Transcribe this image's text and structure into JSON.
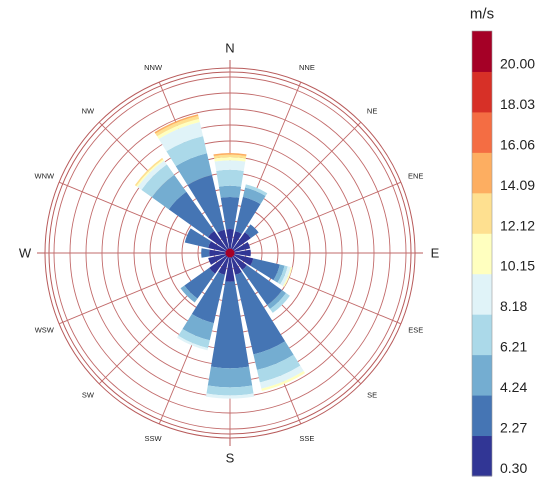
{
  "chart_data": {
    "type": "windrose",
    "unit": "m/s",
    "directions": [
      "N",
      "NNE",
      "NE",
      "ENE",
      "E",
      "ESE",
      "SE",
      "SSE",
      "S",
      "SSW",
      "SW",
      "WSW",
      "W",
      "WNW",
      "NW",
      "NNW"
    ],
    "bins": [
      {
        "range": "0.30–2.27",
        "color": "#313695"
      },
      {
        "range": "2.27–4.24",
        "color": "#4575b4"
      },
      {
        "range": "4.24–6.21",
        "color": "#74add1"
      },
      {
        "range": "6.21–8.18",
        "color": "#abd9e9"
      },
      {
        "range": "8.18–10.15",
        "color": "#e0f3f8"
      },
      {
        "range": "10.15–12.12",
        "color": "#ffffbf"
      },
      {
        "range": "12.12–14.09",
        "color": "#fee090"
      },
      {
        "range": "14.09–16.06",
        "color": "#fdae61"
      },
      {
        "range": "16.06–18.03",
        "color": "#f46d43"
      },
      {
        "range": "18.03–20.00",
        "color": "#d73027"
      },
      {
        "range": "> 20.00",
        "color": "#a50026"
      }
    ],
    "colorbar_ticks": [
      "0.30",
      "2.27",
      "4.24",
      "6.21",
      "8.18",
      "10.15",
      "12.12",
      "14.09",
      "16.06",
      "18.03",
      "20.00"
    ],
    "rings": 11,
    "series": [
      {
        "direction": "N",
        "cumulative": [
          1.5,
          3.5,
          4.2,
          5.2,
          5.8,
          6.0,
          6.15,
          6.25
        ]
      },
      {
        "direction": "NNE",
        "cumulative": [
          1.4,
          3.6,
          4.2,
          4.4
        ]
      },
      {
        "direction": "NE",
        "cumulative": [
          1.6,
          2.2
        ]
      },
      {
        "direction": "ENE",
        "cumulative": [
          1.3
        ]
      },
      {
        "direction": "E",
        "cumulative": [
          1.3
        ]
      },
      {
        "direction": "ESE",
        "cumulative": [
          1.5,
          3.2,
          3.5,
          3.7,
          3.9,
          4.0
        ]
      },
      {
        "direction": "SE",
        "cumulative": [
          1.3,
          4.0,
          4.3,
          4.6
        ]
      },
      {
        "direction": "SSE",
        "cumulative": [
          1.4,
          6.5,
          7.5,
          8.3,
          8.7,
          8.85
        ]
      },
      {
        "direction": "S",
        "cumulative": [
          1.8,
          7.2,
          8.4,
          8.9,
          9.1
        ]
      },
      {
        "direction": "SSW",
        "cumulative": [
          1.4,
          4.5,
          5.6,
          6.1,
          6.25
        ]
      },
      {
        "direction": "SW",
        "cumulative": [
          1.6,
          3.5,
          3.8
        ]
      },
      {
        "direction": "WSW",
        "cumulative": [
          1.4
        ]
      },
      {
        "direction": "W",
        "cumulative": [
          1.3,
          1.8
        ]
      },
      {
        "direction": "WNW",
        "cumulative": [
          1.4,
          2.9
        ]
      },
      {
        "direction": "NW",
        "cumulative": [
          1.7,
          4.7,
          6.0,
          6.8,
          7.1,
          7.2,
          7.3
        ]
      },
      {
        "direction": "NNW",
        "cumulative": [
          1.5,
          5.0,
          6.4,
          7.5,
          8.4,
          8.6,
          8.8,
          8.9
        ]
      }
    ]
  }
}
